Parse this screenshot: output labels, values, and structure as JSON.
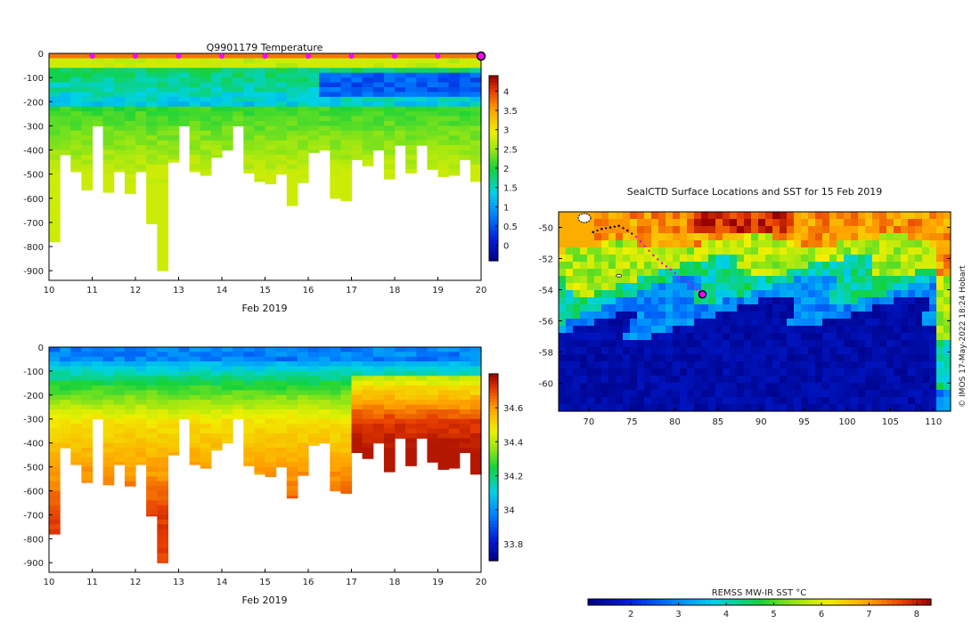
{
  "chart_data": [
    {
      "type": "heatmap",
      "title": "Q9901179  Temperature",
      "xlabel": "Feb 2019",
      "ylabel": "",
      "xlim": [
        10,
        20
      ],
      "ylim": [
        -940,
        0
      ],
      "xticks": [
        "10",
        "11",
        "12",
        "13",
        "14",
        "15",
        "16",
        "17",
        "18",
        "19",
        "20"
      ],
      "yticks": [
        "0",
        "-100",
        "-200",
        "-300",
        "-400",
        "-500",
        "-600",
        "-700",
        "-800",
        "-900"
      ],
      "colorbar": {
        "range": [
          -0.4,
          4.4
        ],
        "ticks": [
          "0",
          "0.5",
          "1",
          "1.5",
          "2",
          "2.5",
          "3",
          "3.5",
          "4"
        ]
      },
      "surface_markers_days": [
        11,
        12,
        13,
        14,
        15,
        16,
        17,
        18,
        19
      ],
      "current_marker_day": 20,
      "profile_depths": [
        -780,
        -420,
        -490,
        -565,
        -300,
        -575,
        -490,
        -580,
        -490,
        -705,
        -900,
        -450,
        -300,
        -490,
        -505,
        -430,
        -400,
        -300,
        -495,
        -530,
        -540,
        -500,
        -630,
        -535,
        -410,
        -400,
        -600,
        -610,
        -440,
        -465,
        -400,
        -520,
        -380,
        -495,
        -380,
        -480,
        -510,
        -505,
        -440,
        -530
      ]
    },
    {
      "type": "heatmap",
      "title": "",
      "xlabel": "Feb 2019",
      "ylabel": "",
      "xlim": [
        10,
        20
      ],
      "ylim": [
        -940,
        0
      ],
      "xticks": [
        "10",
        "11",
        "12",
        "13",
        "14",
        "15",
        "16",
        "17",
        "18",
        "19",
        "20"
      ],
      "yticks": [
        "0",
        "-100",
        "-200",
        "-300",
        "-400",
        "-500",
        "-600",
        "-700",
        "-800",
        "-900"
      ],
      "colorbar": {
        "range": [
          33.7,
          34.8
        ],
        "ticks": [
          "33.8",
          "34",
          "34.2",
          "34.4",
          "34.6"
        ]
      }
    },
    {
      "type": "heatmap",
      "title": "SealCTD Surface Locations and SST for 15 Feb 2019",
      "xlabel": "",
      "ylabel": "",
      "xlim": [
        66.5,
        112
      ],
      "ylim": [
        -61.8,
        -49
      ],
      "xticks": [
        "70",
        "75",
        "80",
        "85",
        "90",
        "95",
        "100",
        "105",
        "110"
      ],
      "yticks": [
        "-50",
        "-52",
        "-54",
        "-56",
        "-58",
        "-60"
      ],
      "track_lon": [
        70.5,
        71.5,
        72.5,
        73.5,
        74.5,
        75.5,
        76.5,
        77.5,
        78.5,
        79.5,
        80.5,
        81.5,
        82.5,
        83.2
      ],
      "track_lat": [
        -50.3,
        -50.1,
        -50.0,
        -49.9,
        -50.2,
        -50.6,
        -51.2,
        -51.8,
        -52.3,
        -52.7,
        -53.2,
        -53.6,
        -54.0,
        -54.3
      ],
      "current_position": {
        "lon": 83.2,
        "lat": -54.3
      },
      "colorbar": {
        "label": "REMSS MW-IR SST °C",
        "range": [
          1.1,
          8.3
        ],
        "ticks": [
          "2",
          "3",
          "4",
          "5",
          "6",
          "7",
          "8"
        ]
      }
    }
  ],
  "credit": "© IMOS 17-May-2022 18:24 Hobart"
}
